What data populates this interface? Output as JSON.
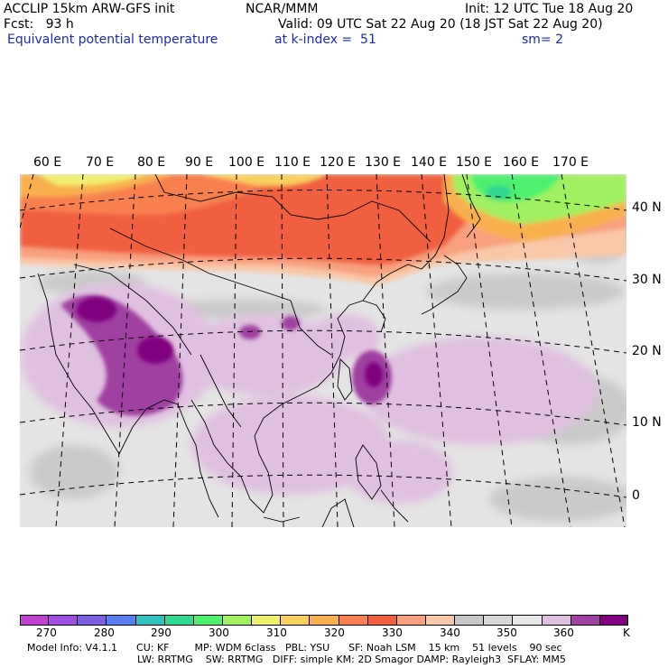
{
  "header": {
    "model": "ACCLIP 15km ARW-GFS init",
    "org": "NCAR/MMM",
    "init": "Init: 12 UTC Tue 18 Aug 20",
    "fcst": "Fcst:   93 h",
    "valid": "Valid: 09 UTC Sat 22 Aug 20 (18 JST Sat 22 Aug 20)",
    "field": "Equivalent potential temperature",
    "level": "at k-index =  51",
    "smooth": "sm= 2"
  },
  "map": {
    "lon_labels": [
      "60 E",
      "70 E",
      "80 E",
      "90 E",
      "100 E",
      "110 E",
      "120 E",
      "130 E",
      "140 E",
      "150 E",
      "160 E",
      "170 E"
    ],
    "lat_labels": [
      "40 N",
      "30 N",
      "20 N",
      "10 N",
      "0"
    ]
  },
  "colorbar": {
    "colors": [
      "#c040d0",
      "#a050e0",
      "#7a60e0",
      "#5a80f0",
      "#30c0c0",
      "#30d890",
      "#50f070",
      "#a0f060",
      "#f0f070",
      "#f8d060",
      "#f8b050",
      "#f88050",
      "#f06040",
      "#f8a080",
      "#f8c8a8",
      "#c8c8c8",
      "#d8d8d8",
      "#e8e8e8",
      "#e0c0e0",
      "#a040a0",
      "#800080"
    ],
    "labels": [
      "270",
      "280",
      "290",
      "300",
      "310",
      "320",
      "330",
      "340",
      "350",
      "360"
    ],
    "unit": "K"
  },
  "footer": {
    "line1": "Model Info: V4.1.1      CU: KF        MP: WDM 6class   PBL: YSU      SF: Noah LSM    15 km    51 levels    90 sec",
    "line2": "LW: RRTMG    SW: RRTMG   DIFF: simple KM: 2D Smagor DAMP: Rayleigh3  SFLAY: MM5"
  }
}
